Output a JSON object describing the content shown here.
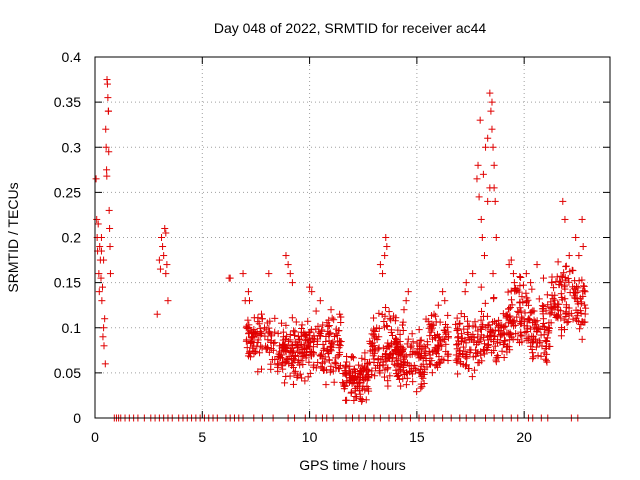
{
  "chart_data": {
    "type": "scatter",
    "title": "Day 048 of 2022, SRMTID for receiver ac44",
    "xlabel": "GPS time / hours",
    "ylabel": "SRMTID / TECUs",
    "xlim": [
      0,
      24
    ],
    "ylim": [
      0,
      0.4
    ],
    "xticks": [
      0,
      5,
      10,
      15,
      20
    ],
    "yticks": [
      0,
      0.05,
      0.1,
      0.15,
      0.2,
      0.25,
      0.3,
      0.35,
      0.4
    ],
    "xtick_labels": [
      "0",
      "5",
      "10",
      "15",
      "20"
    ],
    "ytick_labels": [
      "0",
      "0.05",
      "0.1",
      "0.15",
      "0.2",
      "0.25",
      "0.3",
      "0.35",
      "0.4"
    ],
    "grid": true,
    "marker": "+",
    "color": "#e00000",
    "series": [
      {
        "name": "SRMTID",
        "points": [
          [
            0.05,
            0.265
          ],
          [
            0.08,
            0.22
          ],
          [
            0.1,
            0.2
          ],
          [
            0.12,
            0.185
          ],
          [
            0.15,
            0.215
          ],
          [
            0.18,
            0.16
          ],
          [
            0.2,
            0.14
          ],
          [
            0.22,
            0.19
          ],
          [
            0.25,
            0.175
          ],
          [
            0.28,
            0.155
          ],
          [
            0.3,
            0.2
          ],
          [
            0.32,
            0.13
          ],
          [
            0.35,
            0.145
          ],
          [
            0.37,
            0.09
          ],
          [
            0.4,
            0.1
          ],
          [
            0.42,
            0.08
          ],
          [
            0.45,
            0.11
          ],
          [
            0.48,
            0.06
          ],
          [
            0.5,
            0.32
          ],
          [
            0.52,
            0.3
          ],
          [
            0.54,
            0.275
          ],
          [
            0.55,
            0.268
          ],
          [
            0.56,
            0.375
          ],
          [
            0.58,
            0.37
          ],
          [
            0.6,
            0.355
          ],
          [
            0.62,
            0.34
          ],
          [
            0.63,
            0.34
          ],
          [
            0.64,
            0.295
          ],
          [
            0.66,
            0.23
          ],
          [
            0.68,
            0.21
          ],
          [
            0.7,
            0.19
          ],
          [
            0.72,
            0.16
          ],
          [
            0.3,
            0.185
          ],
          [
            0.4,
            0.175
          ],
          [
            2.9,
            0.115
          ],
          [
            3.0,
            0.175
          ],
          [
            3.05,
            0.165
          ],
          [
            3.1,
            0.2
          ],
          [
            3.15,
            0.19
          ],
          [
            3.2,
            0.18
          ],
          [
            3.25,
            0.21
          ],
          [
            3.3,
            0.205
          ],
          [
            3.35,
            0.17
          ],
          [
            3.4,
            0.13
          ],
          [
            3.3,
            0.16
          ],
          [
            6.25,
            0.155
          ],
          [
            6.3,
            0.155
          ],
          [
            6.9,
            0.16
          ],
          [
            7.0,
            0.13
          ],
          [
            7.05,
            0.1
          ],
          [
            18.4,
            0.36
          ],
          [
            18.5,
            0.35
          ],
          [
            18.45,
            0.34
          ],
          [
            18.5,
            0.32
          ],
          [
            18.55,
            0.3
          ],
          [
            18.6,
            0.28
          ],
          [
            18.3,
            0.31
          ],
          [
            18.2,
            0.3
          ],
          [
            18.1,
            0.27
          ],
          [
            17.95,
            0.33
          ],
          [
            17.85,
            0.28
          ],
          [
            17.8,
            0.265
          ],
          [
            17.9,
            0.245
          ],
          [
            18.0,
            0.22
          ],
          [
            18.05,
            0.2
          ],
          [
            18.15,
            0.18
          ],
          [
            18.3,
            0.24
          ],
          [
            18.4,
            0.255
          ],
          [
            18.6,
            0.255
          ],
          [
            18.65,
            0.24
          ],
          [
            18.7,
            0.2
          ],
          [
            18.55,
            0.16
          ],
          [
            18.0,
            0.145
          ],
          [
            21.8,
            0.24
          ],
          [
            21.9,
            0.22
          ],
          [
            22.1,
            0.18
          ],
          [
            22.4,
            0.2
          ],
          [
            22.55,
            0.18
          ],
          [
            22.7,
            0.22
          ],
          [
            22.75,
            0.19
          ],
          [
            20.6,
            0.17
          ],
          [
            20.9,
            0.155
          ]
        ]
      }
    ],
    "zero_points_x": [
      0.9,
      1.0,
      1.1,
      1.2,
      1.4,
      1.6,
      1.8,
      2.0,
      2.3,
      2.6,
      2.8,
      3.0,
      3.2,
      3.4,
      3.6,
      3.9,
      4.1,
      4.3,
      4.5,
      4.7,
      4.9,
      5.1,
      5.3,
      5.5,
      5.7,
      6.1,
      6.3,
      6.5,
      6.7,
      6.9,
      7.4,
      7.8,
      8.3,
      9.0,
      9.3,
      9.8,
      10.3,
      10.6,
      10.8,
      11.1,
      11.7,
      12.0,
      12.3,
      12.6,
      13.0,
      13.3,
      13.7,
      14.0,
      14.3,
      14.7,
      15.1,
      15.4,
      15.8,
      16.2,
      16.6,
      17.0,
      17.3,
      17.7,
      18.2,
      18.6,
      19.0,
      19.4,
      19.7,
      20.2,
      20.4,
      20.8,
      21.1,
      22.2,
      22.5
    ],
    "clusters": [
      {
        "x": [
          7.0,
          7.6
        ],
        "y": [
          0.05,
          0.12
        ],
        "n": 40
      },
      {
        "x": [
          7.5,
          8.4
        ],
        "y": [
          0.04,
          0.13
        ],
        "n": 45
      },
      {
        "x": [
          8.5,
          9.9
        ],
        "y": [
          0.03,
          0.12
        ],
        "n": 130
      },
      {
        "x": [
          9.9,
          11.5
        ],
        "y": [
          0.03,
          0.13
        ],
        "n": 120
      },
      {
        "x": [
          11.5,
          12.8
        ],
        "y": [
          0.01,
          0.08
        ],
        "n": 110
      },
      {
        "x": [
          12.8,
          14.4
        ],
        "y": [
          0.02,
          0.13
        ],
        "n": 130
      },
      {
        "x": [
          14.0,
          15.4
        ],
        "y": [
          0.01,
          0.11
        ],
        "n": 100
      },
      {
        "x": [
          15.4,
          16.5
        ],
        "y": [
          0.03,
          0.13
        ],
        "n": 80
      },
      {
        "x": [
          16.8,
          17.9
        ],
        "y": [
          0.03,
          0.13
        ],
        "n": 80
      },
      {
        "x": [
          17.9,
          19.2
        ],
        "y": [
          0.04,
          0.14
        ],
        "n": 90
      },
      {
        "x": [
          19.2,
          20.2
        ],
        "y": [
          0.06,
          0.17
        ],
        "n": 80
      },
      {
        "x": [
          20.2,
          21.2
        ],
        "y": [
          0.04,
          0.16
        ],
        "n": 80
      },
      {
        "x": [
          21.2,
          22.9
        ],
        "y": [
          0.07,
          0.19
        ],
        "n": 120
      }
    ],
    "sparse_points": [
      [
        8.9,
        0.18
      ],
      [
        9.0,
        0.17
      ],
      [
        9.1,
        0.16
      ],
      [
        9.2,
        0.15
      ],
      [
        7.8,
        0.11
      ],
      [
        7.9,
        0.1
      ],
      [
        7.2,
        0.13
      ],
      [
        7.15,
        0.14
      ],
      [
        8.1,
        0.16
      ],
      [
        10.1,
        0.14
      ],
      [
        10.0,
        0.145
      ],
      [
        10.5,
        0.13
      ],
      [
        11.0,
        0.12
      ],
      [
        11.4,
        0.115
      ],
      [
        13.4,
        0.16
      ],
      [
        13.3,
        0.17
      ],
      [
        13.5,
        0.18
      ],
      [
        13.55,
        0.2
      ],
      [
        13.6,
        0.19
      ],
      [
        14.6,
        0.14
      ],
      [
        14.5,
        0.13
      ],
      [
        14.4,
        0.12
      ],
      [
        16.2,
        0.14
      ],
      [
        16.3,
        0.13
      ],
      [
        16.0,
        0.125
      ],
      [
        15.8,
        0.115
      ],
      [
        17.3,
        0.15
      ],
      [
        17.25,
        0.14
      ],
      [
        17.6,
        0.16
      ],
      [
        19.3,
        0.17
      ],
      [
        19.4,
        0.175
      ],
      [
        19.5,
        0.16
      ],
      [
        20.1,
        0.16
      ],
      [
        20.3,
        0.15
      ]
    ]
  }
}
